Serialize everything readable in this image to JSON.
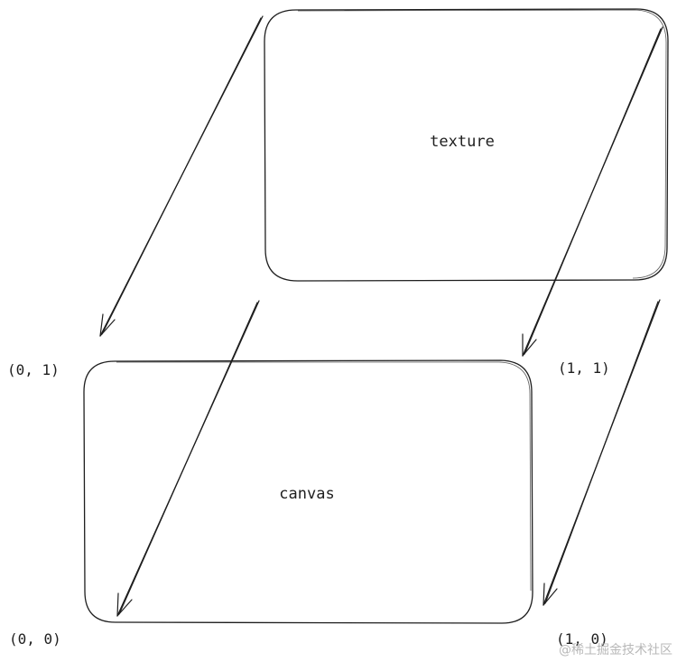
{
  "texture_label": "texture",
  "canvas_label": "canvas",
  "corners": {
    "top_left": "(0, 1)",
    "top_right": "(1, 1)",
    "bottom_left": "(0, 0)",
    "bottom_right": "(1, 0)"
  },
  "watermark": "@稀土掘金技术社区",
  "stroke_color": "#1e1e1e",
  "watermark_color": "#b8b8b8"
}
